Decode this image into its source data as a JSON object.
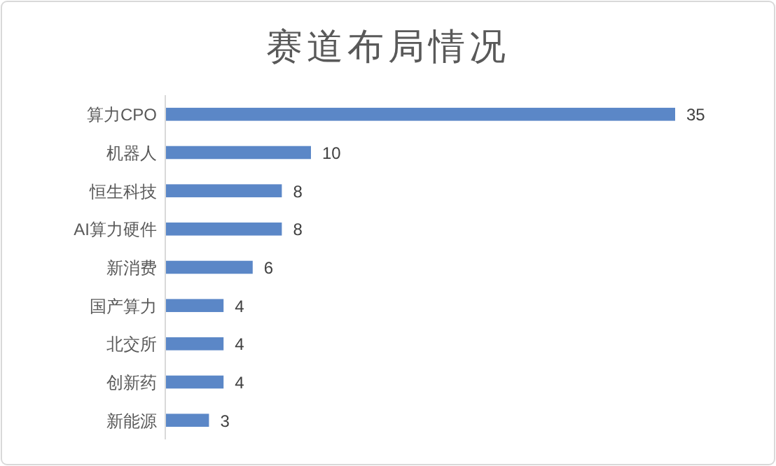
{
  "chart_data": {
    "type": "bar",
    "orientation": "horizontal",
    "title": "赛道布局情况",
    "categories": [
      "算力CPO",
      "机器人",
      "恒生科技",
      "AI算力硬件",
      "新消费",
      "国产算力",
      "北交所",
      "创新药",
      "新能源"
    ],
    "values": [
      35,
      10,
      8,
      8,
      6,
      4,
      4,
      4,
      3
    ],
    "color": "#5b87c7",
    "data_labels": true
  }
}
